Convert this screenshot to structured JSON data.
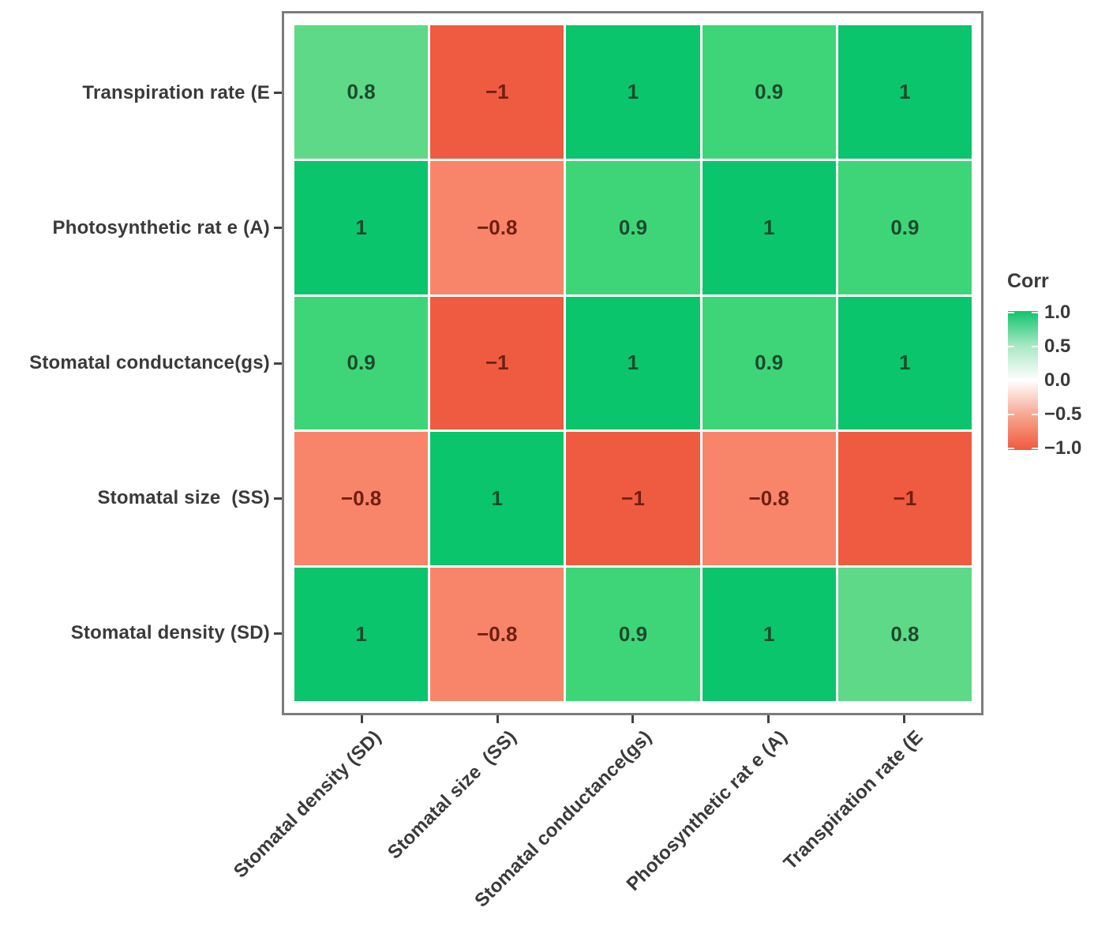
{
  "figure": {
    "background": "#ffffff",
    "panel_border_color": "#7c7c7c",
    "tick_color": "#424242",
    "axis_text_color": "#3a3a3a"
  },
  "chart_data": {
    "type": "heatmap",
    "title": "",
    "x_categories": [
      "Stomatal density (SD)",
      "Stomatal size  (SS)",
      "Stomatal conductance(gs)",
      "Photosynthetic rat e (A)",
      "Transpiration rate (E"
    ],
    "y_categories_top_to_bottom": [
      "Transpiration rate (E",
      "Photosynthetic rat e (A)",
      "Stomatal conductance(gs)",
      "Stomatal size  (SS)",
      "Stomatal density (SD)"
    ],
    "rows": [
      {
        "label": "Transpiration rate (E",
        "values": [
          0.8,
          -1,
          1,
          0.9,
          1
        ]
      },
      {
        "label": "Photosynthetic rat e (A)",
        "values": [
          1,
          -0.8,
          0.9,
          1,
          0.9
        ]
      },
      {
        "label": "Stomatal conductance(gs)",
        "values": [
          0.9,
          -1,
          1,
          0.9,
          1
        ]
      },
      {
        "label": "Stomatal size  (SS)",
        "values": [
          -0.8,
          1,
          -1,
          -0.8,
          -1
        ]
      },
      {
        "label": "Stomatal density (SD)",
        "values": [
          1,
          -0.8,
          0.9,
          1,
          0.8
        ]
      }
    ],
    "palette": {
      "1": "#0ac56b",
      "0.9": "#3ed578",
      "0.8": "#5dd987",
      "-0.8": "#f8846a",
      "-1": "#ef5b40"
    },
    "value_text_colors": {
      "positive": "#1d4a2b",
      "negative": "#6f1f10"
    },
    "legend": {
      "title": "Corr",
      "position": "right",
      "ticks": [
        "1.0",
        "0.5",
        "0.0",
        "−0.5",
        "−1.0"
      ],
      "range": [
        -1,
        1
      ],
      "gradient_stops": [
        "#0fc46c",
        "#a9e8c4",
        "#ffffff",
        "#f6a690",
        "#ef5a3d"
      ]
    },
    "grid": false
  }
}
